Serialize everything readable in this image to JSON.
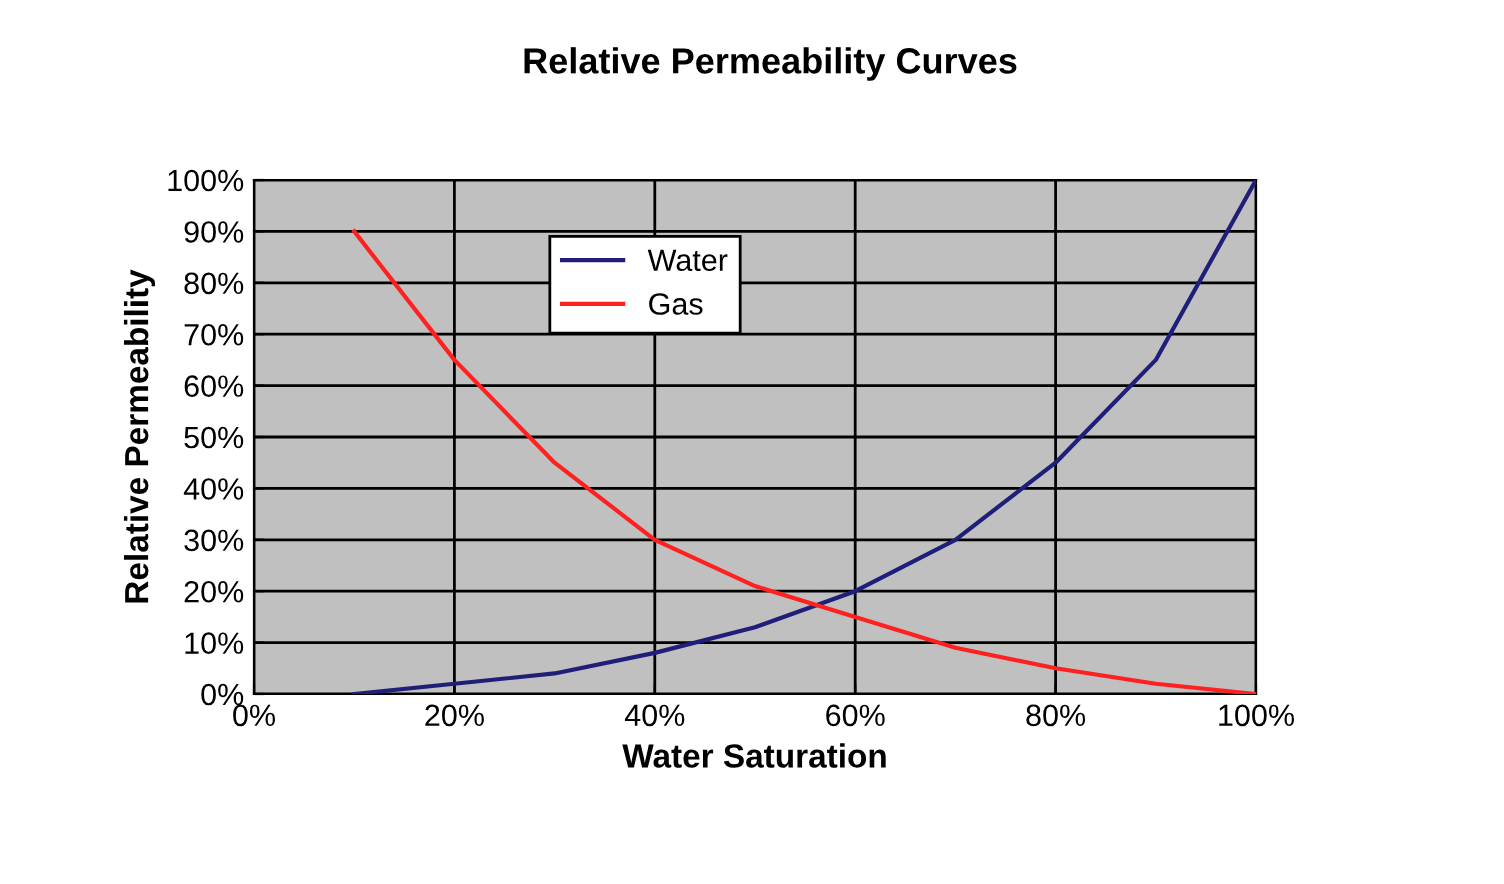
{
  "chart_data": {
    "type": "line",
    "title": "Relative Permeability Curves",
    "xlabel": "Water Saturation",
    "ylabel": "Relative Permeability",
    "x": [
      10,
      20,
      30,
      40,
      50,
      60,
      70,
      80,
      90,
      100
    ],
    "series": [
      {
        "name": "Water",
        "color": "#1f1f7a",
        "values": [
          0,
          2,
          4,
          8,
          13,
          20,
          30,
          45,
          65,
          100
        ]
      },
      {
        "name": "Gas",
        "color": "#ff2020",
        "values": [
          90,
          65,
          45,
          30,
          21,
          15,
          9,
          5,
          2,
          0
        ]
      }
    ],
    "xlim": [
      0,
      100
    ],
    "ylim": [
      0,
      100
    ],
    "xticks": [
      {
        "value": 0,
        "label": "0%"
      },
      {
        "value": 20,
        "label": "20%"
      },
      {
        "value": 40,
        "label": "40%"
      },
      {
        "value": 60,
        "label": "60%"
      },
      {
        "value": 80,
        "label": "80%"
      },
      {
        "value": 100,
        "label": "100%"
      }
    ],
    "yticks": [
      {
        "value": 0,
        "label": "0%"
      },
      {
        "value": 10,
        "label": "10%"
      },
      {
        "value": 20,
        "label": "20%"
      },
      {
        "value": 30,
        "label": "30%"
      },
      {
        "value": 40,
        "label": "40%"
      },
      {
        "value": 50,
        "label": "50%"
      },
      {
        "value": 60,
        "label": "60%"
      },
      {
        "value": 70,
        "label": "70%"
      },
      {
        "value": 80,
        "label": "80%"
      },
      {
        "value": 90,
        "label": "90%"
      },
      {
        "value": 100,
        "label": "100%"
      }
    ],
    "grid": true,
    "legend": "top center",
    "marker": "none",
    "line_style": "solid"
  }
}
